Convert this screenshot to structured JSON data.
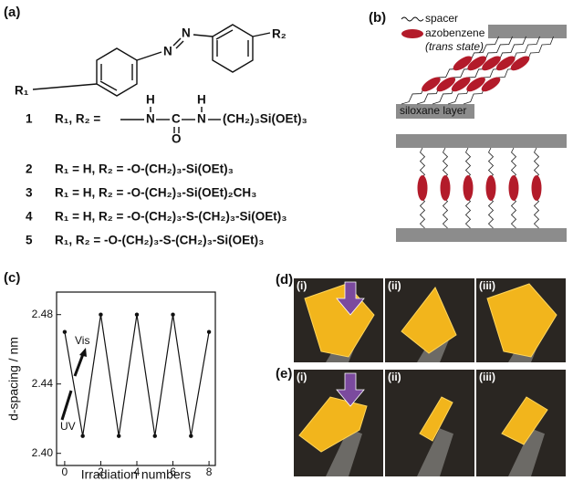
{
  "panel_a": {
    "label": "(a)",
    "structure": {
      "r1": "R₁",
      "r2": "R₂",
      "n1": "N",
      "n2": "N"
    },
    "compound_1": {
      "number": "1",
      "lhs": "R₁, R₂ =",
      "h_left": "H",
      "h_right": "H",
      "n_left": "N",
      "c": "C",
      "n_right": "N",
      "o": "O",
      "tail": "(CH₂)₃Si(OEt)₃"
    },
    "compounds": [
      {
        "number": "2",
        "formula": "R₁ = H, R₂ = -O-(CH₂)₃-Si(OEt)₃"
      },
      {
        "number": "3",
        "formula": "R₁ = H, R₂ = -O-(CH₂)₃-Si(OEt)₂CH₃"
      },
      {
        "number": "4",
        "formula": "R₁ = H, R₂ = -O-(CH₂)₃-S-(CH₂)₃-Si(OEt)₃"
      },
      {
        "number": "5",
        "formula": "R₁, R₂ = -O-(CH₂)₃-S-(CH₂)₃-Si(OEt)₃"
      }
    ]
  },
  "panel_b": {
    "label": "(b)",
    "legend_spacer": "spacer",
    "legend_azobenzene": "azobenzene",
    "legend_state": "(trans state)",
    "layer": "siloxane layer"
  },
  "chart_data": {
    "type": "line",
    "panel_label": "(c)",
    "xlabel": "Irradiation numbers",
    "ylabel": "d-spacing / nm",
    "x": [
      0,
      1,
      2,
      3,
      4,
      5,
      6,
      7,
      8
    ],
    "series": [
      {
        "name": "d-spacing",
        "color": "#111111",
        "values": [
          2.47,
          2.41,
          2.48,
          2.41,
          2.48,
          2.41,
          2.48,
          2.41,
          2.47
        ]
      }
    ],
    "xlim": [
      -0.45,
      8.35
    ],
    "ylim": [
      2.393,
      2.493
    ],
    "xticks": [
      0,
      2,
      4,
      6,
      8
    ],
    "yticks": [
      {
        "value": 2.4,
        "label": "2.40"
      },
      2.44,
      2.48
    ],
    "annotations": [
      "Vis",
      "UV"
    ]
  },
  "panel_d": {
    "label": "(d)",
    "photos": [
      "(i)",
      "(ii)",
      "(iii)"
    ]
  },
  "panel_e": {
    "label": "(e)",
    "photos": [
      "(i)",
      "(ii)",
      "(iii)"
    ]
  }
}
